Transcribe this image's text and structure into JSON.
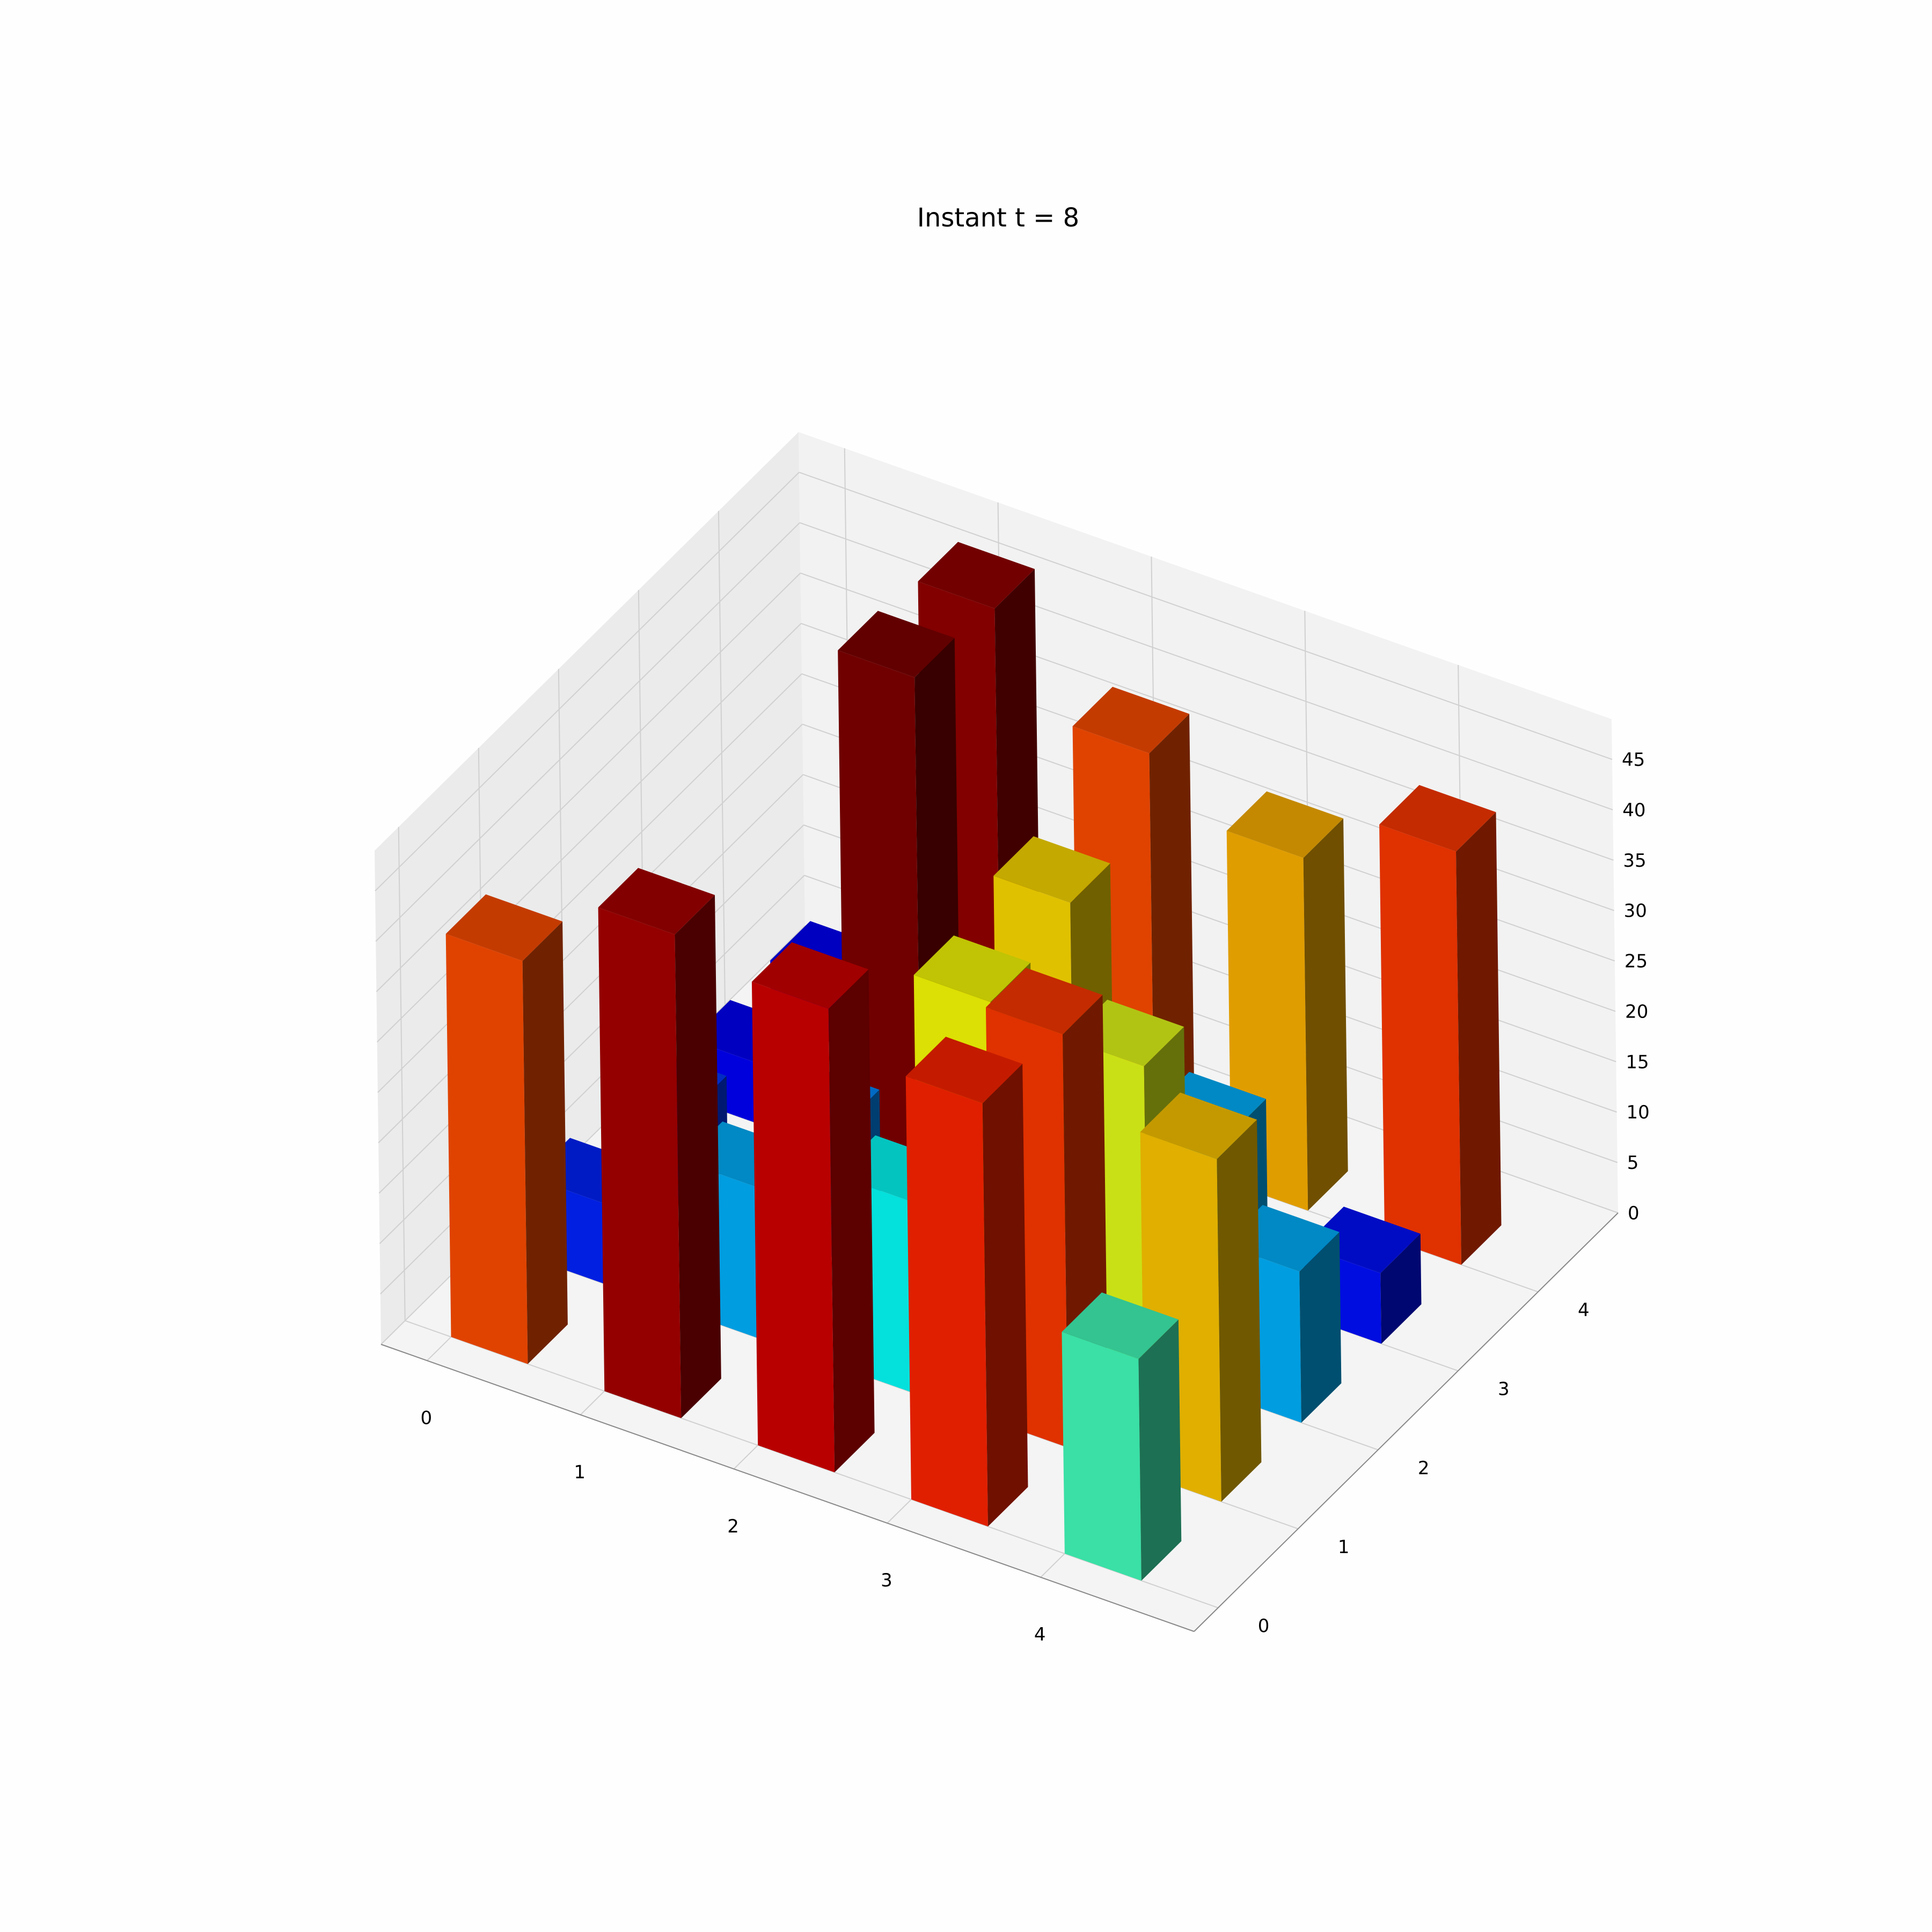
{
  "chart_data": {
    "type": "bar3d",
    "title": "Instant t = 8",
    "xlabel": "",
    "ylabel": "",
    "zlabel": "",
    "x_ticks": [
      "0",
      "1",
      "2",
      "3",
      "4"
    ],
    "y_ticks": [
      "0",
      "1",
      "2",
      "3",
      "4"
    ],
    "z_ticks": [
      "0",
      "5",
      "10",
      "15",
      "20",
      "25",
      "30",
      "35",
      "40",
      "45"
    ],
    "xlim": [
      -0.3,
      5.0
    ],
    "ylim": [
      -0.3,
      5.0
    ],
    "zlim": [
      0,
      49
    ],
    "grid": true,
    "colormap": "jet",
    "bars": [
      {
        "x": 0,
        "y": 0,
        "z": 40
      },
      {
        "x": 0,
        "y": 1,
        "z": 8
      },
      {
        "x": 0,
        "y": 2,
        "z": 9
      },
      {
        "x": 0,
        "y": 3,
        "z": 6
      },
      {
        "x": 0,
        "y": 4,
        "z": 6
      },
      {
        "x": 1,
        "y": 0,
        "z": 48
      },
      {
        "x": 1,
        "y": 1,
        "z": 15
      },
      {
        "x": 1,
        "y": 2,
        "z": 13
      },
      {
        "x": 1,
        "y": 3,
        "z": 50
      },
      {
        "x": 1,
        "y": 4,
        "z": 49
      },
      {
        "x": 2,
        "y": 0,
        "z": 46
      },
      {
        "x": 2,
        "y": 1,
        "z": 19
      },
      {
        "x": 2,
        "y": 2,
        "z": 31
      },
      {
        "x": 2,
        "y": 3,
        "z": 33
      },
      {
        "x": 2,
        "y": 4,
        "z": 40
      },
      {
        "x": 3,
        "y": 0,
        "z": 42
      },
      {
        "x": 3,
        "y": 1,
        "z": 41
      },
      {
        "x": 3,
        "y": 2,
        "z": 30
      },
      {
        "x": 3,
        "y": 3,
        "z": 15
      },
      {
        "x": 3,
        "y": 4,
        "z": 35
      },
      {
        "x": 4,
        "y": 0,
        "z": 22
      },
      {
        "x": 4,
        "y": 1,
        "z": 34
      },
      {
        "x": 4,
        "y": 2,
        "z": 15
      },
      {
        "x": 4,
        "y": 3,
        "z": 7
      },
      {
        "x": 4,
        "y": 4,
        "z": 41
      }
    ],
    "colors": {
      "pane_x": "#f2f2f2",
      "pane_y": "#ebebeb",
      "pane_floor": "#f4f4f4",
      "grid": "#d0d0d0",
      "axis": "#888888"
    }
  }
}
